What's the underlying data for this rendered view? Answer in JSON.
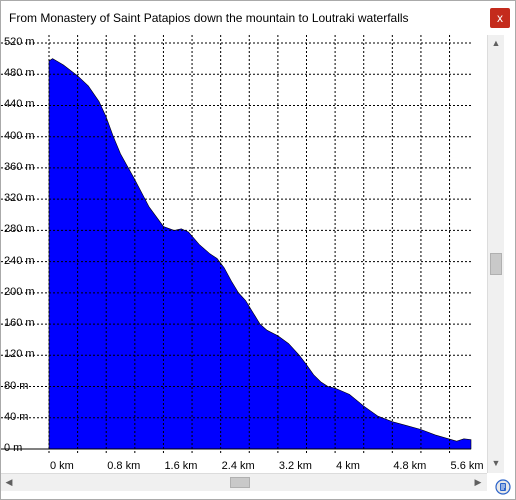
{
  "window": {
    "title": "From Monastery of Saint Patapios down the mountain to Loutraki waterfalls",
    "close_label": "x"
  },
  "chart_data": {
    "type": "area",
    "title": "",
    "xlabel": "",
    "ylabel": "",
    "xlim": [
      0,
      5.9
    ],
    "ylim": [
      0,
      520
    ],
    "y_ticks": [
      "0 m",
      "40 m",
      "80 m",
      "120 m",
      "160 m",
      "200 m",
      "240 m",
      "280 m",
      "320 m",
      "360 m",
      "400 m",
      "440 m",
      "480 m",
      "520 m"
    ],
    "x_ticks": [
      "0 km",
      "0.8 km",
      "1.6 km",
      "2.4 km",
      "3.2 km",
      "4 km",
      "4.8 km",
      "5.6 km"
    ],
    "grid": true,
    "fill_color": "#0000ff",
    "series": [
      {
        "x": [
          0,
          0.05,
          0.2,
          0.4,
          0.55,
          0.7,
          0.8,
          0.9,
          1.0,
          1.2,
          1.4,
          1.6,
          1.75,
          1.85,
          1.95,
          2.1,
          2.25,
          2.35,
          2.45,
          2.55,
          2.65,
          2.75,
          2.85,
          2.95,
          3.05,
          3.2,
          3.35,
          3.5,
          3.6,
          3.7,
          3.8,
          3.9,
          4.0,
          4.2,
          4.4,
          4.6,
          4.8,
          5.0,
          5.2,
          5.4,
          5.55,
          5.7,
          5.8,
          5.9
        ],
        "y": [
          497,
          500,
          492,
          478,
          465,
          445,
          425,
          400,
          378,
          345,
          310,
          285,
          280,
          282,
          278,
          262,
          250,
          244,
          232,
          215,
          200,
          190,
          175,
          160,
          152,
          145,
          135,
          120,
          108,
          95,
          86,
          80,
          78,
          70,
          55,
          42,
          35,
          30,
          25,
          18,
          14,
          10,
          13,
          12
        ]
      }
    ]
  },
  "scrollbars": {
    "vertical_icon_up": "up-arrow",
    "vertical_icon_down": "down-arrow",
    "horizontal_icon_left": "left-arrow",
    "horizontal_icon_right": "right-arrow"
  }
}
